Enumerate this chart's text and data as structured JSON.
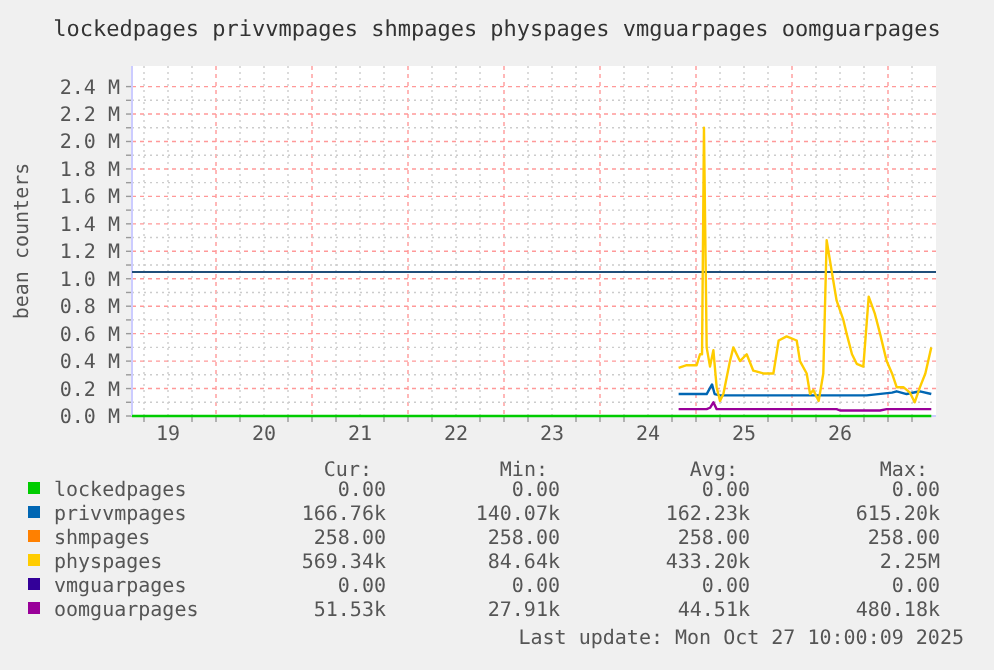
{
  "chart_data": {
    "type": "line",
    "title": "lockedpages privvmpages shmpages physpages vmguarpages oomguarpages",
    "ylabel": "bean counters",
    "xlim": [
      19.125,
      27.5
    ],
    "xticks": [
      {
        "value": 19.25,
        "label": null
      },
      {
        "value": 19.5,
        "label": "19"
      },
      {
        "value": 19.75,
        "label": null
      },
      {
        "value": 20,
        "label": null
      },
      {
        "value": 20.25,
        "label": null
      },
      {
        "value": 20.5,
        "label": "20"
      },
      {
        "value": 20.75,
        "label": null
      },
      {
        "value": 21,
        "label": null
      },
      {
        "value": 21.25,
        "label": null
      },
      {
        "value": 21.5,
        "label": "21"
      },
      {
        "value": 21.75,
        "label": null
      },
      {
        "value": 22,
        "label": null
      },
      {
        "value": 22.25,
        "label": null
      },
      {
        "value": 22.5,
        "label": "22"
      },
      {
        "value": 22.75,
        "label": null
      },
      {
        "value": 23,
        "label": null
      },
      {
        "value": 23.25,
        "label": null
      },
      {
        "value": 23.5,
        "label": "23"
      },
      {
        "value": 23.75,
        "label": null
      },
      {
        "value": 24,
        "label": null
      },
      {
        "value": 24.25,
        "label": null
      },
      {
        "value": 24.5,
        "label": "24"
      },
      {
        "value": 24.75,
        "label": null
      },
      {
        "value": 25,
        "label": null
      },
      {
        "value": 25.25,
        "label": null
      },
      {
        "value": 25.5,
        "label": "25"
      },
      {
        "value": 25.75,
        "label": null
      },
      {
        "value": 26,
        "label": null
      },
      {
        "value": 26.25,
        "label": null
      },
      {
        "value": 26.5,
        "label": "26"
      },
      {
        "value": 26.75,
        "label": null
      },
      {
        "value": 27,
        "label": null
      },
      {
        "value": 27.25,
        "label": null
      }
    ],
    "ylim": [
      0,
      2550000
    ],
    "yticks": [
      {
        "value": 0,
        "label": "0.0 M"
      },
      {
        "value": 100000,
        "label": null
      },
      {
        "value": 200000,
        "label": "0.2 M"
      },
      {
        "value": 300000,
        "label": null
      },
      {
        "value": 400000,
        "label": "0.4 M"
      },
      {
        "value": 500000,
        "label": null
      },
      {
        "value": 600000,
        "label": "0.6 M"
      },
      {
        "value": 700000,
        "label": null
      },
      {
        "value": 800000,
        "label": "0.8 M"
      },
      {
        "value": 900000,
        "label": null
      },
      {
        "value": 1000000,
        "label": "1.0 M"
      },
      {
        "value": 1100000,
        "label": null
      },
      {
        "value": 1200000,
        "label": "1.2 M"
      },
      {
        "value": 1300000,
        "label": null
      },
      {
        "value": 1400000,
        "label": "1.4 M"
      },
      {
        "value": 1500000,
        "label": null
      },
      {
        "value": 1600000,
        "label": "1.6 M"
      },
      {
        "value": 1700000,
        "label": null
      },
      {
        "value": 1800000,
        "label": "1.8 M"
      },
      {
        "value": 1900000,
        "label": null
      },
      {
        "value": 2000000,
        "label": "2.0 M"
      },
      {
        "value": 2100000,
        "label": null
      },
      {
        "value": 2200000,
        "label": "2.2 M"
      },
      {
        "value": 2300000,
        "label": null
      },
      {
        "value": 2400000,
        "label": "2.4 M"
      }
    ],
    "grid": true,
    "legend": "bottom",
    "marker": "none",
    "line_style": "solid",
    "ref_lines": [
      {
        "axis": "y",
        "value": 1050000,
        "label": null,
        "color": "#1f4e79"
      }
    ],
    "series": [
      {
        "name": "lockedpages",
        "color": "#00cc00",
        "x": [
          19.125,
          27.451
        ],
        "values": [
          0,
          0
        ]
      },
      {
        "name": "privvmpages",
        "color": "#0066b3",
        "x": [
          24.819,
          25.111,
          25.167,
          25.194,
          25.25,
          25.736,
          26.083,
          26.222,
          26.361,
          26.778,
          27.042,
          27.09,
          27.194,
          27.333,
          27.451
        ],
        "values": [
          160000,
          160000,
          230000,
          160000,
          150000,
          150000,
          150000,
          150000,
          150000,
          150000,
          170000,
          180000,
          160000,
          180000,
          160000
        ]
      },
      {
        "name": "shmpages",
        "color": "#ff8000"
      },
      {
        "name": "physpages",
        "color": "#ffcc00",
        "x": [
          24.819,
          24.903,
          25.007,
          25.042,
          25.063,
          25.083,
          25.111,
          25.146,
          25.181,
          25.215,
          25.25,
          25.285,
          25.354,
          25.389,
          25.458,
          25.528,
          25.597,
          25.701,
          25.806,
          25.861,
          25.944,
          26.049,
          26.083,
          26.153,
          26.188,
          26.222,
          26.278,
          26.326,
          26.361,
          26.417,
          26.465,
          26.535,
          26.569,
          26.625,
          26.674,
          26.743,
          26.799,
          26.861,
          26.917,
          26.986,
          27.042,
          27.09,
          27.16,
          27.229,
          27.278,
          27.333,
          27.389,
          27.451
        ],
        "values": [
          350000,
          370000,
          370000,
          450000,
          450000,
          2100000,
          500000,
          360000,
          480000,
          210000,
          110000,
          160000,
          400000,
          500000,
          400000,
          450000,
          330000,
          310000,
          310000,
          550000,
          580000,
          550000,
          400000,
          310000,
          160000,
          190000,
          110000,
          310000,
          1280000,
          1040000,
          840000,
          700000,
          600000,
          450000,
          380000,
          360000,
          870000,
          750000,
          600000,
          400000,
          310000,
          210000,
          210000,
          170000,
          100000,
          210000,
          310000,
          500000
        ]
      },
      {
        "name": "vmguarpages",
        "color": "#330099"
      },
      {
        "name": "oomguarpages",
        "color": "#990099",
        "x": [
          24.819,
          25.111,
          25.146,
          25.181,
          25.215,
          25.25,
          26.465,
          26.5,
          26.917,
          26.986,
          27.056,
          27.451
        ],
        "values": [
          50000,
          50000,
          60000,
          100000,
          50000,
          50000,
          50000,
          40000,
          40000,
          50000,
          50000,
          50000
        ]
      }
    ],
    "annotations": [
      "Cur:",
      "Min:",
      "Avg:",
      "Max:",
      "0.00",
      "0.00",
      "0.00",
      "0.00",
      "166.76k",
      "140.07k",
      "162.23k",
      "615.20k",
      "258.00",
      "258.00",
      "258.00",
      "258.00",
      "569.34k",
      "84.64k",
      "433.20k",
      "2.25M",
      "0.00",
      "0.00",
      "0.00",
      "0.00",
      "51.53k",
      "27.91k",
      "44.51k",
      "480.18k",
      "Last update: Mon Oct 27 10:00:09 2025"
    ]
  }
}
